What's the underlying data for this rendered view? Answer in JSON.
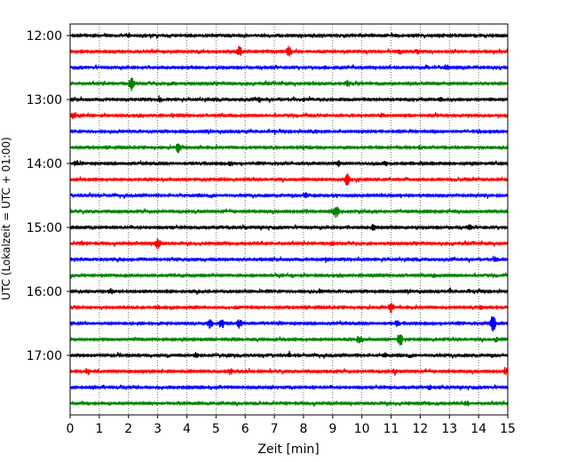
{
  "chart_data": {
    "type": "line",
    "title": "",
    "xlabel": "Zeit  [min]",
    "ylabel": "UTC (Lokalzeit = UTC + 01:00)",
    "xlim": [
      0,
      15
    ],
    "x_ticks": [
      "0",
      "1",
      "2",
      "3",
      "4",
      "5",
      "6",
      "7",
      "8",
      "9",
      "10",
      "11",
      "12",
      "13",
      "14",
      "15"
    ],
    "y_ticks": [
      "12:00",
      "13:00",
      "14:00",
      "15:00",
      "16:00",
      "17:00"
    ],
    "grid": "vertical-dotted",
    "trace_interval_minutes": 15,
    "color_cycle": [
      "#000000",
      "#ff0000",
      "#0000ff",
      "#008000"
    ],
    "series": [
      {
        "start": "12:00",
        "events": [
          [
            2.0,
            0.3
          ],
          [
            11.2,
            0.3
          ],
          [
            5.0,
            0.2
          ]
        ]
      },
      {
        "start": "12:15",
        "events": [
          [
            5.8,
            0.9
          ],
          [
            7.5,
            0.9
          ],
          [
            11.3,
            0.4
          ],
          [
            11.9,
            0.4
          ]
        ]
      },
      {
        "start": "12:30",
        "events": [
          [
            12.9,
            0.5
          ],
          [
            2.5,
            0.2
          ]
        ]
      },
      {
        "start": "12:45",
        "events": [
          [
            2.1,
            1.3
          ],
          [
            9.5,
            0.5
          ],
          [
            3.5,
            0.2
          ]
        ]
      },
      {
        "start": "13:00",
        "events": [
          [
            3.1,
            0.4
          ],
          [
            6.5,
            0.4
          ],
          [
            8.0,
            0.3
          ],
          [
            12.7,
            0.4
          ]
        ]
      },
      {
        "start": "13:15",
        "events": [
          [
            0.1,
            0.5
          ],
          [
            3.5,
            0.3
          ],
          [
            10.7,
            0.3
          ]
        ]
      },
      {
        "start": "13:30",
        "events": [
          [
            14.0,
            0.3
          ],
          [
            7.0,
            0.2
          ]
        ]
      },
      {
        "start": "13:45",
        "events": [
          [
            3.7,
            0.9
          ],
          [
            8.0,
            0.3
          ],
          [
            12.0,
            0.3
          ]
        ]
      },
      {
        "start": "14:00",
        "events": [
          [
            0.2,
            0.5
          ],
          [
            5.5,
            0.5
          ],
          [
            9.2,
            0.5
          ],
          [
            10.8,
            0.4
          ]
        ]
      },
      {
        "start": "14:15",
        "events": [
          [
            9.5,
            1.1
          ],
          [
            2.0,
            0.2
          ]
        ]
      },
      {
        "start": "14:30",
        "events": [
          [
            8.1,
            0.4
          ],
          [
            4.0,
            0.2
          ]
        ]
      },
      {
        "start": "14:45",
        "events": [
          [
            9.1,
            1.2
          ],
          [
            12.5,
            0.2
          ]
        ]
      },
      {
        "start": "15:00",
        "events": [
          [
            10.4,
            0.5
          ],
          [
            13.7,
            0.5
          ],
          [
            6.0,
            0.2
          ]
        ]
      },
      {
        "start": "15:15",
        "events": [
          [
            3.0,
            1.0
          ],
          [
            0.4,
            0.3
          ],
          [
            9.0,
            0.3
          ]
        ]
      },
      {
        "start": "15:30",
        "events": [
          [
            8.8,
            0.4
          ],
          [
            14.6,
            0.3
          ],
          [
            4.5,
            0.2
          ]
        ]
      },
      {
        "start": "15:45",
        "events": [
          [
            7.6,
            0.3
          ],
          [
            12.5,
            0.3
          ]
        ]
      },
      {
        "start": "16:00",
        "events": [
          [
            1.4,
            0.4
          ],
          [
            8.6,
            0.3
          ],
          [
            13.0,
            0.3
          ]
        ]
      },
      {
        "start": "16:15",
        "events": [
          [
            3.0,
            0.4
          ],
          [
            11.0,
            1.0
          ],
          [
            14.1,
            0.3
          ]
        ]
      },
      {
        "start": "16:30",
        "events": [
          [
            4.8,
            0.9
          ],
          [
            5.2,
            0.9
          ],
          [
            5.8,
            0.8
          ],
          [
            11.2,
            0.6
          ],
          [
            14.5,
            1.6
          ]
        ]
      },
      {
        "start": "16:45",
        "events": [
          [
            9.9,
            0.6
          ],
          [
            11.3,
            1.3
          ],
          [
            14.6,
            0.4
          ]
        ]
      },
      {
        "start": "17:00",
        "events": [
          [
            4.3,
            0.4
          ],
          [
            10.8,
            0.5
          ],
          [
            7.5,
            0.3
          ]
        ]
      },
      {
        "start": "17:15",
        "events": [
          [
            0.6,
            0.5
          ],
          [
            5.5,
            0.5
          ],
          [
            11.1,
            0.4
          ],
          [
            14.9,
            0.4
          ]
        ]
      },
      {
        "start": "17:30",
        "events": [
          [
            12.3,
            0.4
          ],
          [
            7.0,
            0.2
          ]
        ]
      },
      {
        "start": "17:45",
        "events": [
          [
            13.6,
            0.5
          ],
          [
            3.0,
            0.2
          ]
        ]
      }
    ]
  }
}
